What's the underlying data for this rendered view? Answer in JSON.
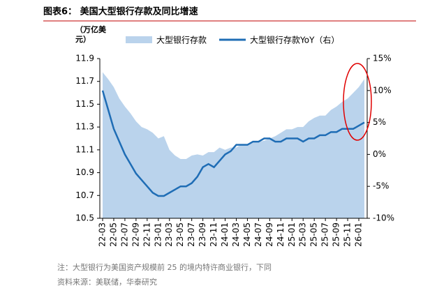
{
  "chart_data": {
    "type": "combo",
    "title": "图表6：  美国大型银行存款及同比增速",
    "y_label": "（万亿美元）",
    "categories": [
      "22-03",
      null,
      "22-05",
      null,
      "22-07",
      null,
      "22-09",
      null,
      "22-11",
      null,
      "23-01",
      null,
      "23-03",
      null,
      "23-05",
      null,
      "23-07",
      null,
      "23-09",
      null,
      "23-11",
      null,
      "24-01",
      null,
      "24-03",
      null,
      "24-05",
      null,
      "24-07",
      null,
      "24-09",
      null,
      "24-11",
      null,
      "25-01",
      null,
      "25-03",
      null,
      "25-05",
      null,
      "25-07",
      null,
      "25-09",
      null,
      "25-11",
      null,
      "26-01",
      null
    ],
    "series": [
      {
        "name": "大型银行存款",
        "type": "area",
        "color": "#bad3ec",
        "values": [
          11.78,
          11.72,
          11.65,
          11.55,
          11.48,
          11.42,
          11.35,
          11.3,
          11.28,
          11.25,
          11.2,
          11.22,
          11.1,
          11.05,
          11.02,
          11.02,
          11.05,
          11.06,
          11.05,
          11.08,
          11.08,
          11.12,
          11.1,
          11.12,
          11.12,
          11.15,
          11.15,
          11.17,
          11.17,
          11.18,
          11.2,
          11.22,
          11.25,
          11.28,
          11.28,
          11.3,
          11.3,
          11.35,
          11.38,
          11.4,
          11.4,
          11.45,
          11.48,
          11.52,
          11.55,
          11.6,
          11.65,
          11.72
        ]
      },
      {
        "name": "大型银行存款YoY（右）",
        "type": "line",
        "axis": "y2",
        "color": "#1f6db5",
        "values": [
          10,
          7,
          4,
          2,
          0,
          -1.5,
          -3,
          -4,
          -5,
          -6,
          -6.5,
          -6.5,
          -6,
          -5.5,
          -5,
          -5,
          -4.5,
          -3.5,
          -2,
          -1.5,
          -2,
          -1,
          0,
          0.5,
          1.5,
          1.5,
          1.5,
          2,
          2,
          2.5,
          2.5,
          2,
          2,
          2.5,
          2.5,
          2.5,
          2,
          2.5,
          2.5,
          3,
          3,
          3.5,
          3.5,
          4,
          4,
          4,
          4.5,
          5
        ]
      }
    ],
    "ylim": [
      10.5,
      11.9
    ],
    "yticks": [
      10.5,
      10.7,
      10.9,
      11.1,
      11.3,
      11.5,
      11.7,
      11.9
    ],
    "y2lim": [
      -10,
      15
    ],
    "y2ticks": [
      {
        "value": -10,
        "label": "-10%"
      },
      {
        "value": -5,
        "label": "-5%"
      },
      {
        "value": 0,
        "label": "0%"
      },
      {
        "value": 5,
        "label": "5%"
      },
      {
        "value": 10,
        "label": "10%"
      },
      {
        "value": 15,
        "label": "15%"
      }
    ],
    "grid": false,
    "notes": [
      "注：大型银行为美国资产规模前 25 的境内特许商业银行，下同",
      "资料来源：美联储，华泰研究"
    ]
  }
}
